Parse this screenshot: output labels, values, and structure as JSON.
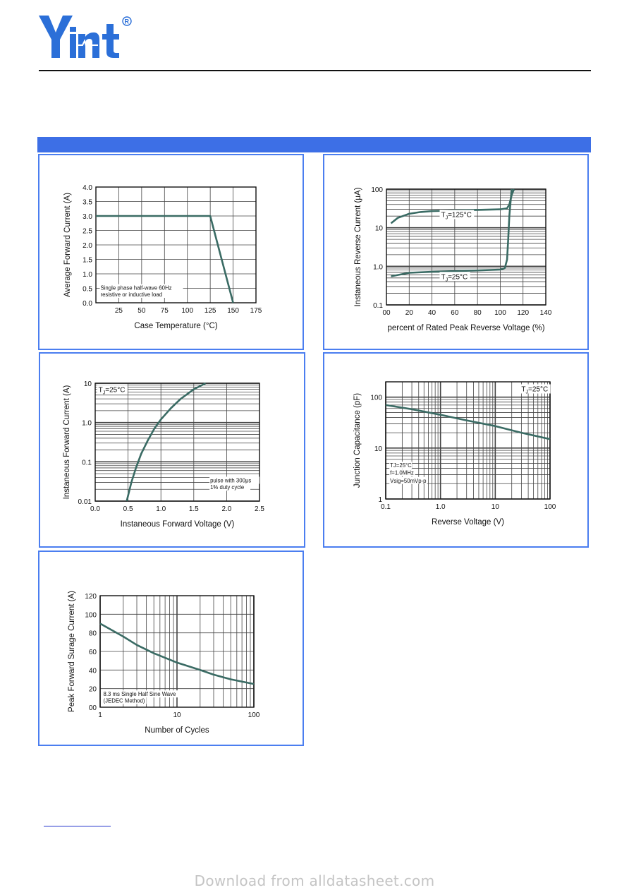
{
  "header": {
    "logo_text": "Yint",
    "registered": "®"
  },
  "footer": {
    "watermark": "Download from alldatasheet.com"
  },
  "charts": [
    {
      "id": "derating",
      "chart_data": {
        "type": "line",
        "title": "",
        "xlabel": "Case Temperature (°C)",
        "ylabel": "Average Forward Current  (A)",
        "xlim": [
          0,
          175
        ],
        "ylim": [
          0,
          4
        ],
        "xscale": "linear",
        "yscale": "linear",
        "xticks": [
          25,
          50,
          75,
          100,
          125,
          150,
          175
        ],
        "yticks": [
          0,
          0.5,
          1,
          1.5,
          2,
          2.5,
          3,
          3.5,
          4
        ],
        "xtick_labels": [
          "25",
          "50",
          "75",
          "100",
          "125",
          "150",
          "175"
        ],
        "ytick_labels": [
          "0.0",
          "0.5",
          "1.0",
          "1.5",
          "2.0",
          "2.5",
          "3.0",
          "3.5",
          "4.0"
        ],
        "grid": true,
        "series": [
          {
            "x": [
              0,
              125,
              150
            ],
            "y": [
              3.0,
              3.0,
              0.0
            ]
          }
        ],
        "annotations": [
          {
            "text": "Single phase half-wave 60Hz",
            "x": 5,
            "y": 0.45
          },
          {
            "text": "resistive or inductive load",
            "x": 5,
            "y": 0.22
          }
        ]
      }
    },
    {
      "id": "reverse",
      "chart_data": {
        "type": "line",
        "title": "",
        "xlabel": "percent of Rated  Peak Reverse Voltage (%)",
        "ylabel": "Instaneous Reverse Current  (μA)",
        "xlim": [
          0,
          140
        ],
        "ylim": [
          0.1,
          100
        ],
        "xscale": "linear",
        "yscale": "log",
        "xticks": [
          0,
          20,
          40,
          60,
          80,
          100,
          120,
          140
        ],
        "yticks": [
          0.1,
          1,
          10,
          100
        ],
        "xtick_labels": [
          "00",
          "20",
          "40",
          "60",
          "80",
          "100",
          "120",
          "140"
        ],
        "ytick_labels": [
          "0.1",
          "1.0",
          "10",
          "100"
        ],
        "grid": true,
        "series": [
          {
            "label": "TJ=125°C",
            "x": [
              4,
              10,
              20,
              30,
              40,
              60,
              80,
              100,
              106,
              108,
              110,
              112
            ],
            "y": [
              13,
              18,
              23,
              25.5,
              27,
              28,
              29,
              30,
              32,
              40,
              70,
              100
            ]
          },
          {
            "label": "TJ=25°C",
            "x": [
              4,
              20,
              40,
              60,
              80,
              100,
              104,
              106,
              107,
              108,
              110
            ],
            "y": [
              0.55,
              0.68,
              0.72,
              0.75,
              0.78,
              0.82,
              0.9,
              1.5,
              5,
              20,
              100
            ]
          }
        ],
        "annotations": [
          {
            "text": "T",
            "sub": "J",
            "rest": "=125°C",
            "x": 48,
            "y": 19
          },
          {
            "text": "T",
            "sub": "J",
            "rest": "=25°C",
            "x": 48,
            "y": 0.47
          }
        ]
      }
    },
    {
      "id": "forward",
      "chart_data": {
        "type": "line",
        "title": "",
        "xlabel": "Instaneous Forward Voltage (V)",
        "ylabel": "Instaneous Forward Current (A)",
        "xlim": [
          0,
          2.5
        ],
        "ylim": [
          0.01,
          10
        ],
        "xscale": "linear",
        "yscale": "log",
        "xticks": [
          0,
          0.5,
          1,
          1.5,
          2,
          2.5
        ],
        "yticks": [
          0.01,
          0.1,
          1,
          10
        ],
        "xtick_labels": [
          "0.0",
          "0.5",
          "1.0",
          "1.5",
          "2.0",
          "2.5"
        ],
        "ytick_labels": [
          "0.01",
          "0.1",
          "1.0",
          "10"
        ],
        "grid": true,
        "series": [
          {
            "x": [
              0.48,
              0.55,
              0.62,
              0.7,
              0.8,
              0.9,
              1.0,
              1.15,
              1.3,
              1.5,
              1.68
            ],
            "y": [
              0.01,
              0.03,
              0.07,
              0.16,
              0.35,
              0.7,
              1.2,
              2.3,
              4.0,
              7.0,
              10
            ]
          }
        ],
        "annotations": [
          {
            "text": "T",
            "sub": "J",
            "rest": "=25°C",
            "x": 0.05,
            "y": 6
          },
          {
            "text": "pulse with 300μs",
            "x": 1.75,
            "y": 0.03
          },
          {
            "text": "1% duty cycle",
            "x": 1.75,
            "y": 0.02
          }
        ]
      }
    },
    {
      "id": "capacitance",
      "chart_data": {
        "type": "line",
        "title": "",
        "xlabel": "Reverse  Voltage (V)",
        "ylabel": "Junction Capacitance (pF)",
        "xlim": [
          0.1,
          100
        ],
        "ylim": [
          1,
          200
        ],
        "xscale": "log",
        "yscale": "log",
        "xticks": [
          0.1,
          1,
          10,
          100
        ],
        "yticks": [
          1,
          10,
          100
        ],
        "xtick_labels": [
          "0.1",
          "1.0",
          "10",
          "100"
        ],
        "ytick_labels": [
          "1",
          "10",
          "100"
        ],
        "grid": true,
        "series": [
          {
            "x": [
              0.1,
              0.3,
              1,
              3,
              10,
              30,
              100
            ],
            "y": [
              70,
              58,
              45,
              35,
              27,
              20,
              15
            ]
          }
        ],
        "annotations": [
          {
            "text": "T",
            "sub": "J",
            "rest": "=25°C",
            "x": 30,
            "y": 130
          },
          {
            "text": "TJ=25°C",
            "x": 0.12,
            "y": 4.2
          },
          {
            "text": "f=1.0MHz",
            "x": 0.12,
            "y": 3.0
          },
          {
            "text": "Vsig=50mVp-p",
            "x": 0.12,
            "y": 2.1
          }
        ]
      }
    },
    {
      "id": "surge",
      "chart_data": {
        "type": "line",
        "title": "",
        "xlabel": "Number of Cycles",
        "ylabel": "Peak Forward Surage Current (A)",
        "xlim": [
          1,
          100
        ],
        "ylim": [
          0,
          120
        ],
        "xscale": "log",
        "yscale": "linear",
        "xticks": [
          1,
          10,
          100
        ],
        "yticks": [
          0,
          20,
          40,
          60,
          80,
          100,
          120
        ],
        "xtick_labels": [
          "1",
          "10",
          "100"
        ],
        "ytick_labels": [
          "00",
          "20",
          "40",
          "60",
          "80",
          "100",
          "120"
        ],
        "grid": true,
        "series": [
          {
            "x": [
              1,
              2,
              3,
              5,
              10,
              20,
              30,
              50,
              100
            ],
            "y": [
              90,
              76,
              67,
              58,
              48,
              40,
              35,
              30,
              25
            ]
          }
        ],
        "annotations": [
          {
            "text": "8.3 ms Single Half Sine Wave",
            "x": 1.1,
            "y": 12
          },
          {
            "text": "(JEDEC Method)",
            "x": 1.1,
            "y": 5
          }
        ]
      }
    }
  ]
}
